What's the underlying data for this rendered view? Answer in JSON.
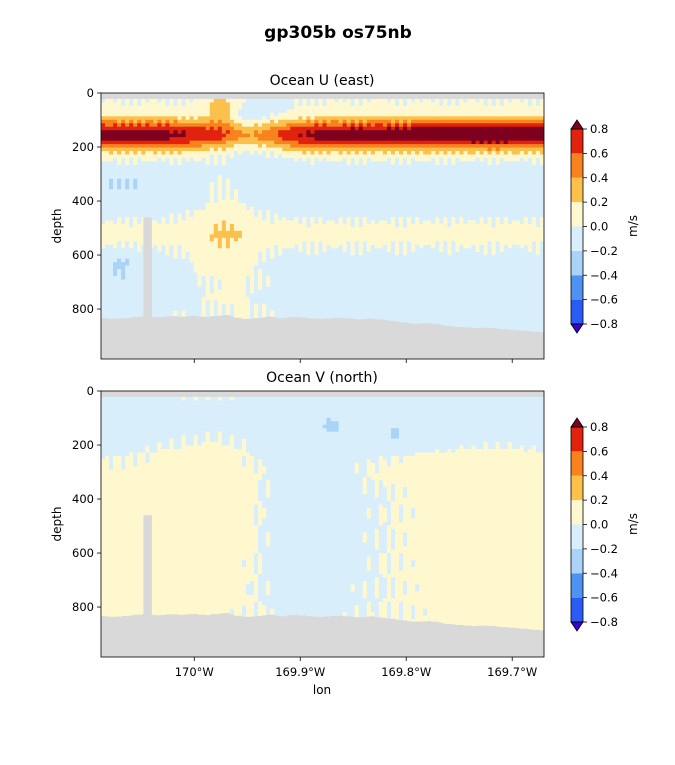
{
  "figure": {
    "suptitle": "gp305b os75nb"
  },
  "colors": {
    "levels": [
      "#3a00d6",
      "#2a5cf5",
      "#4f93f2",
      "#a9d3f7",
      "#d9eefb",
      "#fff8cf",
      "#fcc14c",
      "#f8821e",
      "#e0220e",
      "#7d001f"
    ],
    "land": "#d9d9d9",
    "frame": "#000000"
  },
  "chart_data": [
    {
      "type": "heatmap",
      "title": "Ocean U (east)",
      "xlabel": "",
      "ylabel": "depth",
      "xticks": [
        -170.0,
        -169.9,
        -169.8,
        -169.7
      ],
      "xticklabels": [
        "",
        "",
        "",
        ""
      ],
      "yticks": [
        0,
        200,
        400,
        600,
        800
      ],
      "yticklabels": [
        "0",
        "200",
        "400",
        "600",
        "800"
      ],
      "xlim": [
        -170.088,
        -169.67
      ],
      "ylim": [
        985,
        0
      ],
      "colorbar": {
        "label": "m/s",
        "ticks": [
          -0.8,
          -0.6,
          -0.4,
          -0.2,
          0.0,
          0.2,
          0.4,
          0.6,
          0.8
        ],
        "ticklabels": [
          "−0.8",
          "−0.6",
          "−0.4",
          "−0.2",
          "0.0",
          "0.2",
          "0.4",
          "0.6",
          "0.8"
        ],
        "extend": "both"
      },
      "field": "u",
      "bottom_depth": [
        832,
        834,
        833,
        831,
        829,
        826,
        824,
        826,
        828,
        827,
        825,
        824,
        826,
        825,
        823,
        826,
        828,
        824,
        822,
        820,
        825,
        830,
        834,
        833,
        831,
        828,
        826,
        829,
        832,
        828,
        826,
        829,
        831,
        833,
        835,
        833,
        831,
        830,
        832,
        834,
        836,
        835,
        833,
        836,
        838,
        841,
        844,
        847,
        850,
        852,
        851,
        849,
        852,
        856,
        860,
        862,
        864,
        866,
        868,
        867,
        866,
        868,
        870,
        872,
        874,
        876,
        878,
        880,
        882,
        884
      ]
    },
    {
      "type": "heatmap",
      "title": "Ocean V (north)",
      "xlabel": "lon",
      "ylabel": "depth",
      "xticks": [
        -170.0,
        -169.9,
        -169.8,
        -169.7
      ],
      "xticklabels": [
        "170°W",
        "169.9°W",
        "169.8°W",
        "169.7°W"
      ],
      "yticks": [
        0,
        200,
        400,
        600,
        800
      ],
      "yticklabels": [
        "0",
        "200",
        "400",
        "600",
        "800"
      ],
      "xlim": [
        -170.088,
        -169.67
      ],
      "ylim": [
        985,
        0
      ],
      "colorbar": {
        "label": "m/s",
        "ticks": [
          -0.8,
          -0.6,
          -0.4,
          -0.2,
          0.0,
          0.2,
          0.4,
          0.6,
          0.8
        ],
        "ticklabels": [
          "−0.8",
          "−0.6",
          "−0.4",
          "−0.2",
          "0.0",
          "0.2",
          "0.4",
          "0.6",
          "0.8"
        ],
        "extend": "both"
      },
      "field": "v",
      "bottom_depth": [
        832,
        834,
        833,
        831,
        829,
        826,
        824,
        826,
        828,
        827,
        825,
        824,
        826,
        825,
        823,
        826,
        828,
        824,
        822,
        820,
        825,
        830,
        834,
        833,
        831,
        828,
        826,
        829,
        832,
        828,
        826,
        829,
        831,
        833,
        835,
        833,
        831,
        830,
        832,
        834,
        836,
        835,
        833,
        836,
        838,
        841,
        844,
        847,
        850,
        852,
        851,
        849,
        852,
        856,
        860,
        862,
        864,
        866,
        868,
        867,
        866,
        868,
        870,
        872,
        874,
        876,
        878,
        880,
        882,
        884
      ]
    }
  ]
}
